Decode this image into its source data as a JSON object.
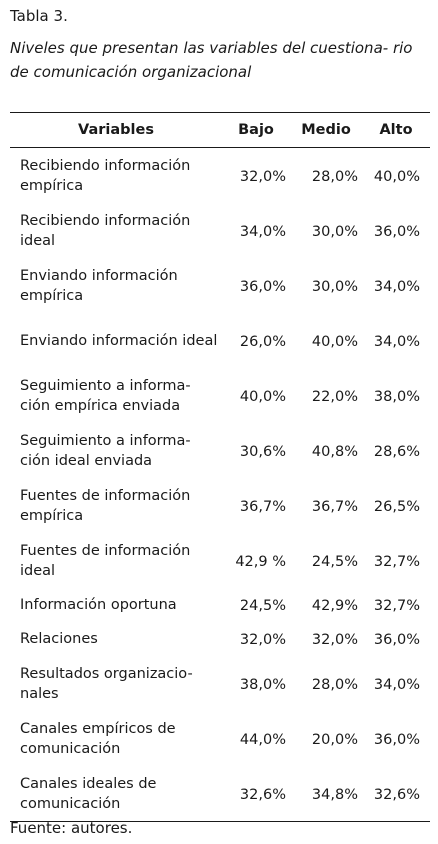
{
  "table_number": "Tabla 3.",
  "table_title": "Niveles que presentan las variables del cuestiona- rio de comunicación organizacional",
  "headers": {
    "variable": "Variables",
    "bajo": "Bajo",
    "medio": "Medio",
    "alto": "Alto"
  },
  "rows": [
    {
      "variable": "Recibiendo información empírica",
      "bajo": "32,0%",
      "medio": "28,0%",
      "alto": "40,0%"
    },
    {
      "variable": "Recibiendo información ideal",
      "bajo": "34,0%",
      "medio": "30,0%",
      "alto": "36,0%"
    },
    {
      "variable": "Enviando información empírica",
      "bajo": "36,0%",
      "medio": "30,0%",
      "alto": "34,0%"
    },
    {
      "variable": "Enviando información ideal",
      "bajo": "26,0%",
      "medio": "40,0%",
      "alto": "34,0%"
    },
    {
      "variable": "Seguimiento a informa- ción empírica enviada",
      "bajo": "40,0%",
      "medio": "22,0%",
      "alto": "38,0%"
    },
    {
      "variable": "Seguimiento a informa- ción ideal enviada",
      "bajo": "30,6%",
      "medio": "40,8%",
      "alto": "28,6%"
    },
    {
      "variable": "Fuentes de información empírica",
      "bajo": "36,7%",
      "medio": "36,7%",
      "alto": "26,5%"
    },
    {
      "variable": "Fuentes de información ideal",
      "bajo": "42,9 %",
      "medio": "24,5%",
      "alto": "32,7%"
    },
    {
      "variable": "Información oportuna",
      "bajo": "24,5%",
      "medio": "42,9%",
      "alto": "32,7%"
    },
    {
      "variable": "Relaciones",
      "bajo": "32,0%",
      "medio": "32,0%",
      "alto": "36,0%"
    },
    {
      "variable": "Resultados organizacio- nales",
      "bajo": "38,0%",
      "medio": "28,0%",
      "alto": "34,0%"
    },
    {
      "variable": "Canales empíricos de comunicación",
      "bajo": "44,0%",
      "medio": "20,0%",
      "alto": "36,0%"
    },
    {
      "variable": "Canales ideales de comunicación",
      "bajo": "32,6%",
      "medio": "34,8%",
      "alto": "32,6%"
    }
  ],
  "source": "Fuente: autores."
}
